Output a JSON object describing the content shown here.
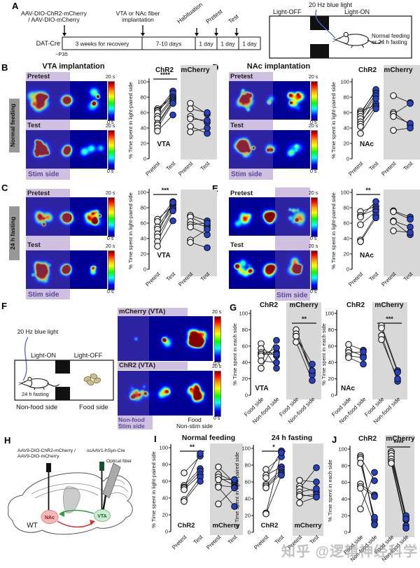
{
  "watermark": "知乎 @逻辑神经科学",
  "colors": {
    "blue_fill": "#2641c6",
    "open_fill": "#f1f1f1",
    "gray_group_bg": "#d8d8d8",
    "lavender": "#cfc0e2",
    "purple_text": "#5a4896",
    "nac_pink": "#f5b8b8",
    "vta_green": "#cdeccd",
    "arrow_green": "#2f9e44",
    "arrow_red": "#d23333",
    "wire_blue": "#5566cc"
  },
  "panelA": {
    "label": "A",
    "inj1_line1": "AAV-DIO-ChR2-mCherry",
    "inj1_line2": "/ AAV-DIO-mCherry",
    "inj2_line1": "VTA or NAc fiber",
    "inj2_line2": "implantation",
    "rot_labels": [
      "Habituation",
      "Pretest",
      "Test"
    ],
    "mouse_line": "DAT-Cre",
    "boxes": [
      "3 weeks for recovery",
      "7-10 days",
      "1 day",
      "1 day",
      "1 day"
    ],
    "age": "~P35",
    "light": "20 Hz blue light",
    "left_label": "Light-OFF",
    "right_label": "Light-ON",
    "condition_line1": "Normal feeding",
    "condition_line2": "or 24 h fasting"
  },
  "panelB": {
    "label": "B",
    "title": "VTA implantation",
    "row_label": "Normal feeding",
    "pretest": "Pretest",
    "test": "Test",
    "stim": "Stim side",
    "cb_max": "20 s",
    "cb_min": "0 s",
    "stim_side": "left"
  },
  "panelC": {
    "label": "C",
    "row_label": "24 h fasting",
    "pretest": "Pretest",
    "test": "Test",
    "stim": "Stim side",
    "cb_max": "20 s",
    "cb_min": "0 s",
    "stim_side": "left"
  },
  "panelD": {
    "label": "D",
    "title": "NAc implantation",
    "pretest": "Pretest",
    "test": "Test",
    "stim": "Stim side",
    "cb_max": "20 s",
    "cb_min": "0 s",
    "stim_side": "left"
  },
  "panelE": {
    "label": "E",
    "pretest": "Pretest",
    "test": "Test",
    "stim": "Stim side",
    "cb_max": "20 s",
    "cb_min": "0 s",
    "stim_side": "right"
  },
  "panelF": {
    "label": "F",
    "light": "20 Hz blue light",
    "light_on": "Light-ON",
    "light_off": "Light-OFF",
    "fasting": "24 h fasting",
    "nonfood_side": "Non-food side",
    "food_side": "Food side",
    "hm1_title": "mCherry (VTA)",
    "hm2_title": "ChR2 (VTA)",
    "cb_max": "20 s",
    "cb_min": "0 s",
    "bottom_left1": "Non-food",
    "bottom_left2": "Stim side",
    "bottom_right1": "Food",
    "bottom_right2": "Non-stim side"
  },
  "panelG": {
    "label": "G"
  },
  "panelH": {
    "label": "H",
    "inj1": "AAV9-DIO-ChR2-mCherry /",
    "inj2": "AAV9-DIO-mCherry",
    "cre": "scAAV1-hSyn-Cre",
    "fiber": "Optical fiber",
    "nac": "NAc",
    "vta": "VTA",
    "wt": "WT"
  },
  "panelI": {
    "label": "I"
  },
  "panelJ": {
    "label": "J"
  },
  "chart_data": [
    {
      "id": "B",
      "type": "paired-scatter",
      "region_label": "VTA",
      "ylabel": "% Time spent in light-paired side",
      "ylim": [
        0,
        100
      ],
      "yticks": [
        0,
        20,
        40,
        60,
        80,
        100
      ],
      "categories": [
        "Pretest",
        "Test"
      ],
      "group_labels": [
        "ChR2",
        "mCherry"
      ],
      "sig": {
        "group": 0,
        "text": "****"
      },
      "series": [
        {
          "name": "ChR2",
          "pairs": [
            [
              65,
              82
            ],
            [
              63,
              80
            ],
            [
              62,
              88
            ],
            [
              60,
              85
            ],
            [
              55,
              80
            ],
            [
              52,
              78
            ],
            [
              46,
              76
            ],
            [
              44,
              74
            ],
            [
              40,
              72
            ],
            [
              36,
              57
            ]
          ]
        },
        {
          "name": "mCherry",
          "pairs": [
            [
              72,
              58
            ],
            [
              65,
              60
            ],
            [
              55,
              47
            ],
            [
              52,
              50
            ],
            [
              42,
              33
            ],
            [
              35,
              40
            ]
          ]
        }
      ]
    },
    {
      "id": "C",
      "type": "paired-scatter",
      "region_label": "VTA",
      "ylabel": "% Time spent in light-paired side",
      "ylim": [
        0,
        100
      ],
      "yticks": [
        0,
        20,
        40,
        60,
        80,
        100
      ],
      "categories": [
        "Pretest",
        "Test"
      ],
      "sig": {
        "group": 0,
        "text": "***"
      },
      "series": [
        {
          "name": "ChR2",
          "pairs": [
            [
              65,
              83
            ],
            [
              62,
              88
            ],
            [
              55,
              85
            ],
            [
              52,
              80
            ],
            [
              46,
              87
            ],
            [
              42,
              78
            ],
            [
              36,
              76
            ],
            [
              30,
              63
            ]
          ]
        },
        {
          "name": "mCherry",
          "pairs": [
            [
              70,
              63
            ],
            [
              68,
              57
            ],
            [
              62,
              55
            ],
            [
              58,
              60
            ],
            [
              55,
              45
            ],
            [
              38,
              52
            ],
            [
              35,
              28
            ]
          ]
        }
      ]
    },
    {
      "id": "D",
      "type": "paired-scatter",
      "region_label": "NAc",
      "ylabel": "% Time spent in light-paired side",
      "ylim": [
        0,
        100
      ],
      "yticks": [
        0,
        20,
        40,
        60,
        80,
        100
      ],
      "categories": [
        "Pretest",
        "Test"
      ],
      "group_labels": [
        "ChR2",
        "mCherry"
      ],
      "series": [
        {
          "name": "ChR2",
          "pairs": [
            [
              62,
              70
            ],
            [
              60,
              88
            ],
            [
              58,
              90
            ],
            [
              55,
              85
            ],
            [
              52,
              82
            ],
            [
              48,
              72
            ],
            [
              45,
              78
            ],
            [
              42,
              68
            ],
            [
              33,
              65
            ]
          ]
        },
        {
          "name": "mCherry",
          "pairs": [
            [
              82,
              73
            ],
            [
              60,
              44
            ],
            [
              58,
              72
            ],
            [
              55,
              46
            ],
            [
              37,
              40
            ]
          ]
        }
      ]
    },
    {
      "id": "E",
      "type": "paired-scatter",
      "region_label": "NAc",
      "ylabel": "% Time spent in light-paired side",
      "ylim": [
        0,
        100
      ],
      "yticks": [
        0,
        20,
        40,
        60,
        80,
        100
      ],
      "categories": [
        "Pretest",
        "Test"
      ],
      "sig": {
        "group": 0,
        "text": "**"
      },
      "series": [
        {
          "name": "ChR2",
          "pairs": [
            [
              75,
              82
            ],
            [
              70,
              78
            ],
            [
              68,
              88
            ],
            [
              58,
              75
            ],
            [
              38,
              70
            ],
            [
              36,
              67
            ]
          ]
        },
        {
          "name": "mCherry",
          "pairs": [
            [
              76,
              68
            ],
            [
              75,
              65
            ],
            [
              63,
              55
            ],
            [
              62,
              45
            ],
            [
              50,
              48
            ]
          ]
        }
      ]
    },
    {
      "id": "G1",
      "type": "paired-scatter",
      "region_label": "VTA",
      "ylabel": "% Time spent in each side",
      "ylim": [
        0,
        100
      ],
      "yticks": [
        0,
        20,
        40,
        60,
        80,
        100
      ],
      "categories": [
        "Food side",
        "Non-food side"
      ],
      "group_labels": [
        "ChR2",
        "mCherry"
      ],
      "sig": {
        "group": 1,
        "text": "**"
      },
      "series": [
        {
          "name": "ChR2",
          "pairs": [
            [
              63,
              33
            ],
            [
              57,
              48
            ],
            [
              52,
              52
            ],
            [
              50,
              50
            ],
            [
              48,
              58
            ],
            [
              42,
              40
            ],
            [
              33,
              67
            ]
          ]
        },
        {
          "name": "mCherry",
          "pairs": [
            [
              80,
              28
            ],
            [
              75,
              25
            ],
            [
              72,
              38
            ],
            [
              72,
              30
            ],
            [
              65,
              18
            ]
          ]
        }
      ]
    },
    {
      "id": "G2",
      "type": "paired-scatter",
      "region_label": "NAc",
      "ylabel": "% Time spent in each side",
      "ylim": [
        0,
        100
      ],
      "yticks": [
        0,
        20,
        40,
        60,
        80,
        100
      ],
      "categories": [
        "Food side",
        "Non-food side"
      ],
      "group_labels": [
        "ChR2",
        "mCherry"
      ],
      "sig": {
        "group": 1,
        "text": "***"
      },
      "series": [
        {
          "name": "ChR2",
          "pairs": [
            [
              62,
              55
            ],
            [
              55,
              48
            ],
            [
              52,
              53
            ],
            [
              48,
              46
            ],
            [
              46,
              38
            ]
          ]
        },
        {
          "name": "mCherry",
          "pairs": [
            [
              85,
              30
            ],
            [
              82,
              28
            ],
            [
              73,
              17
            ],
            [
              68,
              20
            ]
          ]
        }
      ]
    },
    {
      "id": "I1",
      "type": "paired-scatter",
      "title": "Normal feeding",
      "ylabel": "% Time spent in light-paired side",
      "ylim": [
        0,
        100
      ],
      "yticks": [
        0,
        20,
        40,
        60,
        80,
        100
      ],
      "categories": [
        "Pretest",
        "Test"
      ],
      "group_labels": [
        "ChR2",
        "mCherry"
      ],
      "sig": {
        "group": 0,
        "text": "**"
      },
      "series": [
        {
          "name": "ChR2",
          "pairs": [
            [
              70,
              90
            ],
            [
              55,
              75
            ],
            [
              53,
              93
            ],
            [
              52,
              72
            ],
            [
              50,
              68
            ],
            [
              38,
              65
            ],
            [
              36,
              60
            ]
          ]
        },
        {
          "name": "mCherry",
          "pairs": [
            [
              77,
              58
            ],
            [
              68,
              60
            ],
            [
              65,
              55
            ],
            [
              62,
              62
            ],
            [
              55,
              53
            ],
            [
              53,
              30
            ],
            [
              33,
              52
            ]
          ]
        }
      ]
    },
    {
      "id": "I2",
      "type": "paired-scatter",
      "title": "24 h fasting",
      "ylabel": "% Time spent in light-paired side",
      "ylim": [
        0,
        100
      ],
      "yticks": [
        0,
        20,
        40,
        60,
        80,
        100
      ],
      "categories": [
        "Pretest",
        "Test"
      ],
      "group_labels": [
        "ChR2",
        "mCherry"
      ],
      "sig": {
        "group": 0,
        "text": "*"
      },
      "series": [
        {
          "name": "ChR2",
          "pairs": [
            [
              75,
              90
            ],
            [
              68,
              78
            ],
            [
              65,
              97
            ],
            [
              57,
              75
            ],
            [
              55,
              72
            ],
            [
              53,
              70
            ],
            [
              23,
              95
            ],
            [
              22,
              68
            ]
          ]
        },
        {
          "name": "mCherry",
          "pairs": [
            [
              62,
              60
            ],
            [
              55,
              48
            ],
            [
              52,
              77
            ],
            [
              48,
              52
            ],
            [
              45,
              42
            ],
            [
              43,
              45
            ],
            [
              35,
              42
            ]
          ]
        }
      ]
    },
    {
      "id": "J",
      "type": "paired-scatter",
      "ylabel": "% Time spent in each side",
      "ylim": [
        0,
        100
      ],
      "yticks": [
        0,
        20,
        40,
        60,
        80,
        100
      ],
      "categories": [
        "Food side",
        "Non-food side"
      ],
      "group_labels": [
        "ChR2",
        "mCherry"
      ],
      "sig": {
        "group": 1,
        "text": "****"
      },
      "series": [
        {
          "name": "ChR2",
          "pairs": [
            [
              92,
              10
            ],
            [
              90,
              62
            ],
            [
              88,
              15
            ],
            [
              83,
              18
            ],
            [
              58,
              45
            ],
            [
              55,
              43
            ],
            [
              53,
              9
            ],
            [
              28,
              72
            ]
          ]
        },
        {
          "name": "mCherry",
          "pairs": [
            [
              97,
              18
            ],
            [
              95,
              20
            ],
            [
              92,
              15
            ],
            [
              88,
              16
            ],
            [
              85,
              8
            ],
            [
              83,
              5
            ]
          ]
        }
      ]
    }
  ]
}
